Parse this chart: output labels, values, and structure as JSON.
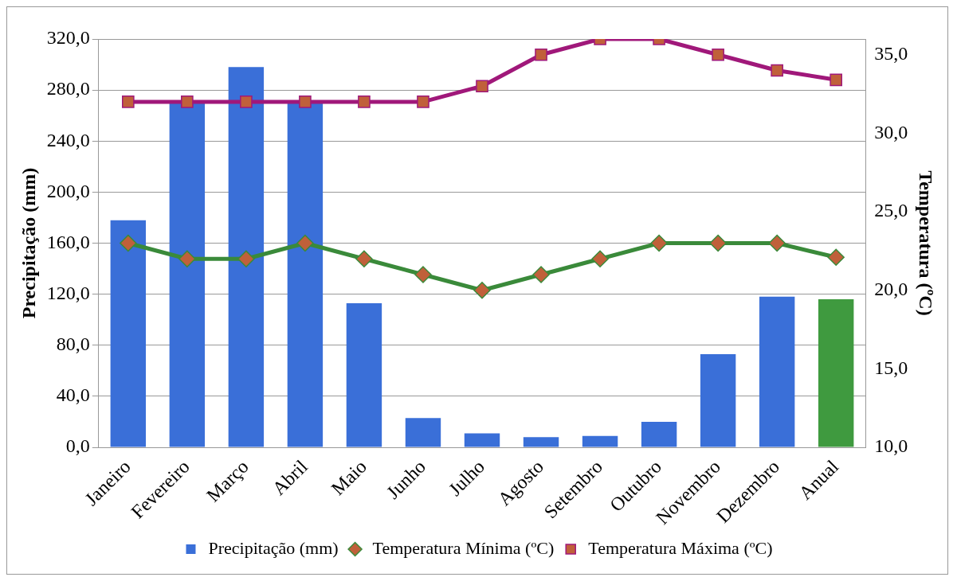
{
  "chart_data": {
    "type": "bar",
    "categories": [
      "Janeiro",
      "Fevereiro",
      "Março",
      "Abril",
      "Maio",
      "Junho",
      "Julho",
      "Agosto",
      "Setembro",
      "Outubro",
      "Novembro",
      "Dezembro",
      "Anual"
    ],
    "series": [
      {
        "name": "Precipitação (mm)",
        "color": "#3a6fd8",
        "colors": [
          "#3a6fd8",
          "#3a6fd8",
          "#3a6fd8",
          "#3a6fd8",
          "#3a6fd8",
          "#3a6fd8",
          "#3a6fd8",
          "#3a6fd8",
          "#3a6fd8",
          "#3a6fd8",
          "#3a6fd8",
          "#3a6fd8",
          "#3f9a3f"
        ],
        "values": [
          178,
          270,
          298,
          270,
          113,
          23,
          11,
          8,
          9,
          20,
          73,
          118,
          116
        ]
      },
      {
        "name": "Temperatura Mínima (ºC)",
        "type": "line",
        "axis": "y2",
        "marker": "diamond",
        "color": "#3a8a3a",
        "values": [
          23,
          22,
          22,
          23,
          22,
          21,
          20,
          21,
          22,
          23,
          23,
          23,
          22.1
        ]
      },
      {
        "name": "Temperatura Máxima (ºC)",
        "type": "line",
        "axis": "y2",
        "marker": "square",
        "color": "#a0187a",
        "values": [
          32,
          32,
          32,
          32,
          32,
          32,
          33,
          35,
          36,
          36,
          35,
          34,
          33.4
        ]
      }
    ],
    "ylabel": "Precipitação (mm)",
    "y2label": "Temperatura (ºC)",
    "ylim": [
      0,
      320
    ],
    "yticks": [
      {
        "value": 0,
        "label": "0,0"
      },
      {
        "value": 40,
        "label": "40,0"
      },
      {
        "value": 80,
        "label": "80,0"
      },
      {
        "value": 120,
        "label": "120,0"
      },
      {
        "value": 160,
        "label": "160,0"
      },
      {
        "value": 200,
        "label": "200,0"
      },
      {
        "value": 240,
        "label": "240,0"
      },
      {
        "value": 280,
        "label": "280,0"
      },
      {
        "value": 320,
        "label": "320,0"
      }
    ],
    "y2lim": [
      10,
      36
    ],
    "y2ticks": [
      {
        "value": 10,
        "label": "10,0"
      },
      {
        "value": 15,
        "label": "15,0"
      },
      {
        "value": 20,
        "label": "20,0"
      },
      {
        "value": 25,
        "label": "25,0"
      },
      {
        "value": 30,
        "label": "30,0"
      },
      {
        "value": 35,
        "label": "35,0"
      }
    ],
    "grid": "y",
    "legend": "bottom"
  }
}
